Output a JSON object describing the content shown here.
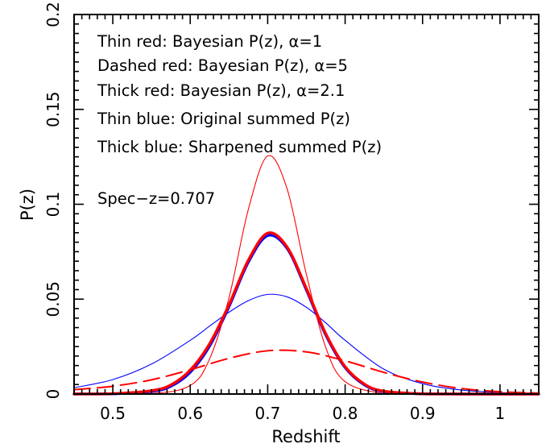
{
  "chart_data": {
    "type": "line",
    "xlabel": "Redshift",
    "ylabel": "P(z)",
    "xlim": [
      0.45,
      1.05
    ],
    "ylim": [
      0,
      0.2
    ],
    "x_ticks": [
      0.5,
      0.6,
      0.7,
      0.8,
      0.9,
      1.0
    ],
    "x_tick_labels": [
      "0.5",
      "0.6",
      "0.7",
      "0.8",
      "0.9",
      "1"
    ],
    "y_ticks": [
      0,
      0.05,
      0.1,
      0.15,
      0.2
    ],
    "y_tick_labels": [
      "0",
      "0.05",
      "0.1",
      "0.15",
      "0.2"
    ],
    "grid": false,
    "annotations": [
      "Thin red: Bayesian P(z), α=1",
      "Dashed red: Bayesian P(z), α=5",
      "Thick red: Bayesian P(z), α=2.1",
      "Thin blue: Original summed P(z)",
      "Thick blue: Sharpened summed P(z)",
      "Spec−z=0.707"
    ],
    "series": [
      {
        "name": "Thin blue: Original summed P(z)",
        "color": "#0000ff",
        "style": "thin",
        "x": [
          0.45,
          0.5,
          0.55,
          0.6,
          0.625,
          0.65,
          0.675,
          0.7,
          0.725,
          0.75,
          0.775,
          0.8,
          0.85,
          0.9,
          0.95,
          1.0,
          1.05
        ],
        "y": [
          0.0033,
          0.0076,
          0.0158,
          0.0283,
          0.0358,
          0.0431,
          0.0492,
          0.0525,
          0.0512,
          0.0457,
          0.0375,
          0.0283,
          0.0131,
          0.0055,
          0.0021,
          0.0008,
          0.0003
        ]
      },
      {
        "name": "Thick blue: Sharpened summed P(z)",
        "color": "#0000ff",
        "style": "thick",
        "x": [
          0.45,
          0.5,
          0.55,
          0.575,
          0.6,
          0.625,
          0.65,
          0.675,
          0.7,
          0.725,
          0.75,
          0.775,
          0.8,
          0.825,
          0.85,
          0.9,
          0.95,
          1.05
        ],
        "y": [
          0.0,
          0.0001,
          0.0014,
          0.0041,
          0.0115,
          0.0253,
          0.046,
          0.0695,
          0.0835,
          0.0768,
          0.0548,
          0.0311,
          0.0139,
          0.0048,
          0.0013,
          0.0001,
          0.0,
          0.0
        ]
      },
      {
        "name": "Thin red: Bayesian P(z), α=1",
        "color": "#ff0000",
        "style": "thin",
        "x": [
          0.45,
          0.55,
          0.6,
          0.625,
          0.65,
          0.675,
          0.7,
          0.725,
          0.75,
          0.775,
          0.8,
          0.85,
          0.9,
          1.05
        ],
        "y": [
          0.0,
          0.0003,
          0.0045,
          0.0185,
          0.0506,
          0.0973,
          0.1255,
          0.1082,
          0.063,
          0.0245,
          0.0065,
          0.0002,
          0.0,
          0.0
        ]
      },
      {
        "name": "Dashed red: Bayesian P(z), α=5",
        "color": "#ff0000",
        "style": "dashed",
        "x": [
          0.45,
          0.5,
          0.55,
          0.6,
          0.65,
          0.7,
          0.75,
          0.8,
          0.85,
          0.9,
          0.95,
          1.0,
          1.05
        ],
        "y": [
          0.0023,
          0.0041,
          0.0075,
          0.0128,
          0.0188,
          0.0228,
          0.0222,
          0.0175,
          0.0114,
          0.0063,
          0.0029,
          0.0012,
          0.0005
        ]
      },
      {
        "name": "Thick red: Bayesian P(z), α=2.1",
        "color": "#ff0000",
        "style": "thick",
        "x": [
          0.45,
          0.5,
          0.55,
          0.575,
          0.6,
          0.625,
          0.65,
          0.675,
          0.7,
          0.725,
          0.75,
          0.775,
          0.8,
          0.825,
          0.85,
          0.9,
          0.95,
          1.05
        ],
        "y": [
          0.0,
          0.0002,
          0.0018,
          0.0048,
          0.0126,
          0.0265,
          0.047,
          0.0705,
          0.0848,
          0.0775,
          0.0556,
          0.0318,
          0.0144,
          0.0052,
          0.0015,
          0.0001,
          0.0,
          0.0
        ]
      }
    ]
  }
}
